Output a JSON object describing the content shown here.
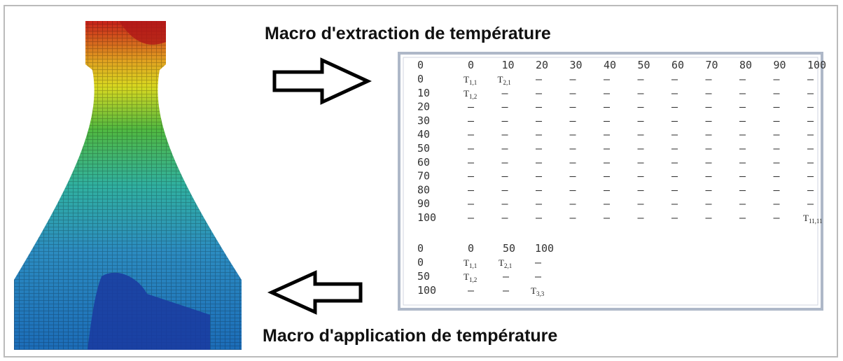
{
  "caption_top": "Macro d'extraction de température",
  "caption_bottom": "Macro d'application de température",
  "table_fine": {
    "header": [
      "0",
      "0",
      "10",
      "20",
      "30",
      "40",
      "50",
      "60",
      "70",
      "80",
      "90",
      "100"
    ],
    "rows": [
      [
        "0",
        {
          "symbol": "T",
          "index": "1,1"
        },
        {
          "symbol": "T",
          "index": "2,1"
        },
        "–",
        "–",
        "–",
        "–",
        "–",
        "–",
        "–",
        "–",
        "–"
      ],
      [
        "10",
        {
          "symbol": "T",
          "index": "1,2"
        },
        "–",
        "–",
        "–",
        "–",
        "–",
        "–",
        "–",
        "–",
        "–",
        "–"
      ],
      [
        "20",
        "–",
        "–",
        "–",
        "–",
        "–",
        "–",
        "–",
        "–",
        "–",
        "–",
        "–"
      ],
      [
        "30",
        "–",
        "–",
        "–",
        "–",
        "–",
        "–",
        "–",
        "–",
        "–",
        "–",
        "–"
      ],
      [
        "40",
        "–",
        "–",
        "–",
        "–",
        "–",
        "–",
        "–",
        "–",
        "–",
        "–",
        "–"
      ],
      [
        "50",
        "–",
        "–",
        "–",
        "–",
        "–",
        "–",
        "–",
        "–",
        "–",
        "–",
        "–"
      ],
      [
        "60",
        "–",
        "–",
        "–",
        "–",
        "–",
        "–",
        "–",
        "–",
        "–",
        "–",
        "–"
      ],
      [
        "70",
        "–",
        "–",
        "–",
        "–",
        "–",
        "–",
        "–",
        "–",
        "–",
        "–",
        "–"
      ],
      [
        "80",
        "–",
        "–",
        "–",
        "–",
        "–",
        "–",
        "–",
        "–",
        "–",
        "–",
        "–"
      ],
      [
        "90",
        "–",
        "–",
        "–",
        "–",
        "–",
        "–",
        "–",
        "–",
        "–",
        "–",
        "–"
      ],
      [
        "100",
        "–",
        "–",
        "–",
        "–",
        "–",
        "–",
        "–",
        "–",
        "–",
        "–",
        {
          "symbol": "T",
          "index": "11,11"
        }
      ]
    ]
  },
  "table_coarse": {
    "header": [
      "0",
      "0",
      "50",
      "100"
    ],
    "rows": [
      [
        "0",
        {
          "symbol": "T",
          "index": "1,1"
        },
        {
          "symbol": "T",
          "index": "2,1"
        },
        "–"
      ],
      [
        "50",
        {
          "symbol": "T",
          "index": "1,2"
        },
        "–",
        "–"
      ],
      [
        "100",
        "–",
        "–",
        {
          "symbol": "T",
          "index": "3,3"
        }
      ]
    ]
  }
}
